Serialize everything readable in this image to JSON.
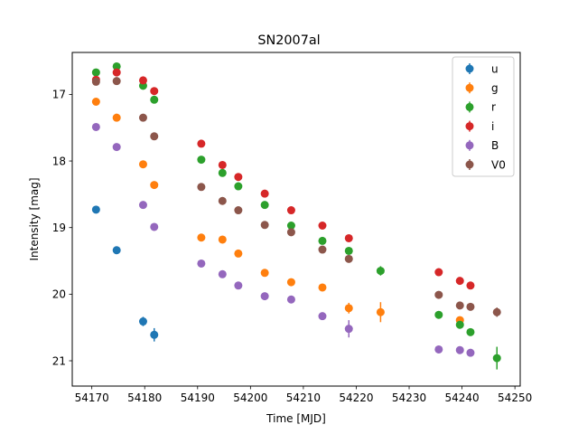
{
  "chart_data": {
    "type": "scatter",
    "title": "SN2007al",
    "xlabel": "Time [MJD]",
    "ylabel": "Intensity [mag]",
    "xlim": [
      54166.3,
      54251.0
    ],
    "ylim": [
      21.38,
      16.37
    ],
    "y_inverted": true,
    "grid": false,
    "legend_position": "top-right",
    "xticks": [
      54170,
      54180,
      54190,
      54200,
      54210,
      54220,
      54230,
      54240,
      54250
    ],
    "yticks": [
      17,
      18,
      19,
      20,
      21
    ],
    "series": [
      {
        "name": "u",
        "color": "#1f77b4",
        "points": [
          {
            "x": 54170.8,
            "y": 18.73,
            "err": 0.04
          },
          {
            "x": 54174.7,
            "y": 19.34,
            "err": 0.04
          },
          {
            "x": 54179.7,
            "y": 20.41,
            "err": 0.07
          },
          {
            "x": 54181.8,
            "y": 20.61,
            "err": 0.1
          }
        ]
      },
      {
        "name": "g",
        "color": "#ff7f0e",
        "points": [
          {
            "x": 54170.8,
            "y": 17.11,
            "err": 0.02
          },
          {
            "x": 54174.7,
            "y": 17.35,
            "err": 0.02
          },
          {
            "x": 54179.7,
            "y": 18.05,
            "err": 0.02
          },
          {
            "x": 54181.8,
            "y": 18.36,
            "err": 0.02
          },
          {
            "x": 54190.7,
            "y": 19.15,
            "err": 0.02
          },
          {
            "x": 54194.7,
            "y": 19.18,
            "err": 0.02
          },
          {
            "x": 54197.7,
            "y": 19.39,
            "err": 0.02
          },
          {
            "x": 54202.7,
            "y": 19.68,
            "err": 0.03
          },
          {
            "x": 54207.7,
            "y": 19.82,
            "err": 0.03
          },
          {
            "x": 54213.6,
            "y": 19.9,
            "err": 0.03
          },
          {
            "x": 54218.6,
            "y": 20.21,
            "err": 0.08
          },
          {
            "x": 54224.6,
            "y": 20.27,
            "err": 0.15
          },
          {
            "x": 54239.6,
            "y": 20.39,
            "err": 0.05
          }
        ]
      },
      {
        "name": "r",
        "color": "#2ca02c",
        "points": [
          {
            "x": 54170.8,
            "y": 16.67,
            "err": 0.02
          },
          {
            "x": 54174.7,
            "y": 16.58,
            "err": 0.02
          },
          {
            "x": 54179.7,
            "y": 16.87,
            "err": 0.02
          },
          {
            "x": 54181.8,
            "y": 17.08,
            "err": 0.02
          },
          {
            "x": 54190.7,
            "y": 17.98,
            "err": 0.02
          },
          {
            "x": 54194.7,
            "y": 18.18,
            "err": 0.02
          },
          {
            "x": 54197.7,
            "y": 18.38,
            "err": 0.02
          },
          {
            "x": 54202.7,
            "y": 18.66,
            "err": 0.02
          },
          {
            "x": 54207.7,
            "y": 18.97,
            "err": 0.02
          },
          {
            "x": 54213.6,
            "y": 19.2,
            "err": 0.03
          },
          {
            "x": 54218.6,
            "y": 19.35,
            "err": 0.03
          },
          {
            "x": 54224.6,
            "y": 19.65,
            "err": 0.07
          },
          {
            "x": 54235.6,
            "y": 20.31,
            "err": 0.04
          },
          {
            "x": 54239.6,
            "y": 20.46,
            "err": 0.04
          },
          {
            "x": 54241.6,
            "y": 20.57,
            "err": 0.04
          },
          {
            "x": 54246.6,
            "y": 20.96,
            "err": 0.17
          }
        ]
      },
      {
        "name": "i",
        "color": "#d62728",
        "points": [
          {
            "x": 54170.8,
            "y": 16.78,
            "err": 0.02
          },
          {
            "x": 54174.7,
            "y": 16.67,
            "err": 0.02
          },
          {
            "x": 54179.7,
            "y": 16.79,
            "err": 0.02
          },
          {
            "x": 54181.8,
            "y": 16.95,
            "err": 0.02
          },
          {
            "x": 54190.7,
            "y": 17.74,
            "err": 0.02
          },
          {
            "x": 54194.7,
            "y": 18.06,
            "err": 0.02
          },
          {
            "x": 54197.7,
            "y": 18.24,
            "err": 0.02
          },
          {
            "x": 54202.7,
            "y": 18.49,
            "err": 0.02
          },
          {
            "x": 54207.7,
            "y": 18.74,
            "err": 0.03
          },
          {
            "x": 54213.6,
            "y": 18.97,
            "err": 0.03
          },
          {
            "x": 54218.6,
            "y": 19.16,
            "err": 0.03
          },
          {
            "x": 54235.6,
            "y": 19.67,
            "err": 0.04
          },
          {
            "x": 54239.6,
            "y": 19.8,
            "err": 0.04
          },
          {
            "x": 54241.6,
            "y": 19.87,
            "err": 0.04
          }
        ]
      },
      {
        "name": "B",
        "color": "#9467bd",
        "points": [
          {
            "x": 54170.8,
            "y": 17.49,
            "err": 0.02
          },
          {
            "x": 54174.7,
            "y": 17.79,
            "err": 0.02
          },
          {
            "x": 54179.7,
            "y": 18.66,
            "err": 0.02
          },
          {
            "x": 54181.8,
            "y": 18.99,
            "err": 0.02
          },
          {
            "x": 54190.7,
            "y": 19.54,
            "err": 0.04
          },
          {
            "x": 54194.7,
            "y": 19.7,
            "err": 0.03
          },
          {
            "x": 54197.7,
            "y": 19.87,
            "err": 0.03
          },
          {
            "x": 54202.7,
            "y": 20.03,
            "err": 0.03
          },
          {
            "x": 54207.7,
            "y": 20.08,
            "err": 0.03
          },
          {
            "x": 54213.6,
            "y": 20.33,
            "err": 0.04
          },
          {
            "x": 54218.6,
            "y": 20.52,
            "err": 0.13
          },
          {
            "x": 54235.6,
            "y": 20.83,
            "err": 0.05
          },
          {
            "x": 54239.6,
            "y": 20.84,
            "err": 0.05
          },
          {
            "x": 54241.6,
            "y": 20.88,
            "err": 0.05
          }
        ]
      },
      {
        "name": "V0",
        "color": "#8c564b",
        "points": [
          {
            "x": 54170.8,
            "y": 16.81,
            "err": 0.02
          },
          {
            "x": 54174.7,
            "y": 16.8,
            "err": 0.02
          },
          {
            "x": 54179.7,
            "y": 17.35,
            "err": 0.02
          },
          {
            "x": 54181.8,
            "y": 17.63,
            "err": 0.02
          },
          {
            "x": 54190.7,
            "y": 18.39,
            "err": 0.02
          },
          {
            "x": 54194.7,
            "y": 18.6,
            "err": 0.02
          },
          {
            "x": 54197.7,
            "y": 18.74,
            "err": 0.02
          },
          {
            "x": 54202.7,
            "y": 18.96,
            "err": 0.02
          },
          {
            "x": 54207.7,
            "y": 19.07,
            "err": 0.02
          },
          {
            "x": 54213.6,
            "y": 19.33,
            "err": 0.03
          },
          {
            "x": 54218.6,
            "y": 19.47,
            "err": 0.03
          },
          {
            "x": 54235.6,
            "y": 20.01,
            "err": 0.04
          },
          {
            "x": 54239.6,
            "y": 20.17,
            "err": 0.04
          },
          {
            "x": 54241.6,
            "y": 20.19,
            "err": 0.04
          },
          {
            "x": 54246.6,
            "y": 20.27,
            "err": 0.07
          }
        ]
      }
    ]
  }
}
